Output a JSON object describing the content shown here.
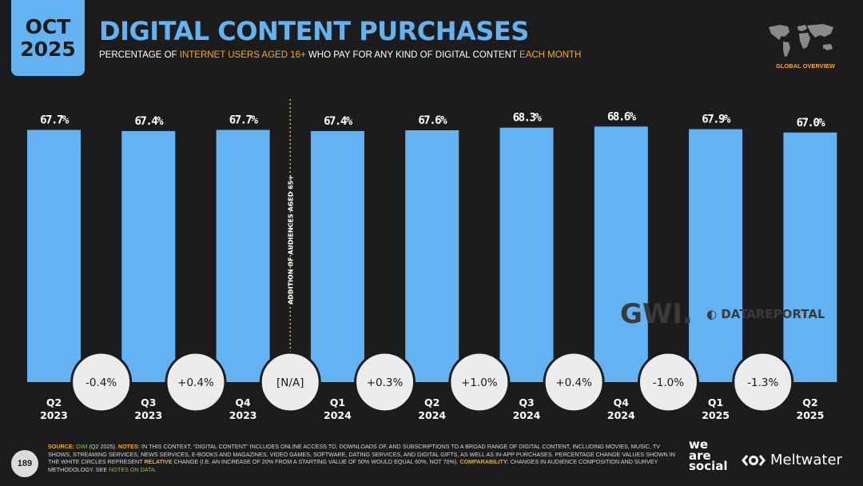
{
  "badge": {
    "month": "OCT",
    "year": "2025"
  },
  "title": "DIGITAL CONTENT PURCHASES",
  "subtitle": {
    "p1": "PERCENTAGE OF ",
    "h1": "INTERNET USERS AGED 16+",
    "p2": " WHO PAY FOR ANY KIND OF DIGITAL CONTENT ",
    "h2": "EACH MONTH"
  },
  "global_overview": "GLOBAL OVERVIEW",
  "colors": {
    "bar": "#63b3f3",
    "accent": "#f7a81b",
    "background": "#1c1c1c",
    "circle": "#ececec"
  },
  "chart_data": {
    "type": "bar",
    "title": "DIGITAL CONTENT PURCHASES",
    "ylim": [
      0,
      80
    ],
    "categories": [
      [
        "Q2",
        "2023"
      ],
      [
        "Q3",
        "2023"
      ],
      [
        "Q4",
        "2023"
      ],
      [
        "Q1",
        "2024"
      ],
      [
        "Q2",
        "2024"
      ],
      [
        "Q3",
        "2024"
      ],
      [
        "Q4",
        "2024"
      ],
      [
        "Q1",
        "2025"
      ],
      [
        "Q2",
        "2025"
      ]
    ],
    "values": [
      67.7,
      67.4,
      67.7,
      67.4,
      67.6,
      68.3,
      68.6,
      67.9,
      67.0
    ],
    "value_labels": [
      "67.7%",
      "67.4%",
      "67.7%",
      "67.4%",
      "67.6%",
      "68.3%",
      "68.6%",
      "67.9%",
      "67.0%"
    ],
    "changes": [
      "-0.4%",
      "+0.4%",
      "[N/A]",
      "+0.3%",
      "+1.0%",
      "+0.4%",
      "-1.0%",
      "-1.3%"
    ],
    "divider_label": "ADDITION OF AUDIENCES AGED 65+",
    "divider_after_index": 2
  },
  "watermarks": {
    "gwi": "GWI.",
    "datareportal": "DATAREPORTAL"
  },
  "page_number": "189",
  "footnote": {
    "source_label": "SOURCE:",
    "source_name": "GWI",
    "source_rest": " (Q2 2025). ",
    "notes_label": "NOTES:",
    "notes_text": " IN THIS CONTEXT, “DIGITAL CONTENT” INCLUDES ONLINE ACCESS TO, DOWNLOADS OF, AND SUBSCRIPTIONS TO A BROAD RANGE OF DIGITAL CONTENT, INCLUDING MOVIES, MUSIC, TV SHOWS, STREAMING SERVICES, NEWS SERVICES, E-BOOKS AND MAGAZINES, VIDEO GAMES, SOFTWARE, DATING SERVICES, AND DIGITAL GIFTS, AS WELL AS IN-APP PURCHASES. PERCENTAGE CHANGE VALUES SHOWN IN THE WHITE CIRCLES REPRESENT ",
    "relative": "RELATIVE",
    "relative_rest": " CHANGE (I.E. AN INCREASE OF 20% FROM A STARTING VALUE OF 50% WOULD EQUAL 60%, NOT 70%). ",
    "comparability_label": "COMPARABILITY:",
    "comparability_text": " CHANGES IN AUDIENCE COMPOSITION AND SURVEY METHODOLOGY. SEE ",
    "notes_on_data": "NOTES ON DATA",
    "end": "."
  },
  "logos": {
    "was_line1": "we",
    "was_line2": "are",
    "was_line3": "social",
    "meltwater": "Meltwater"
  }
}
